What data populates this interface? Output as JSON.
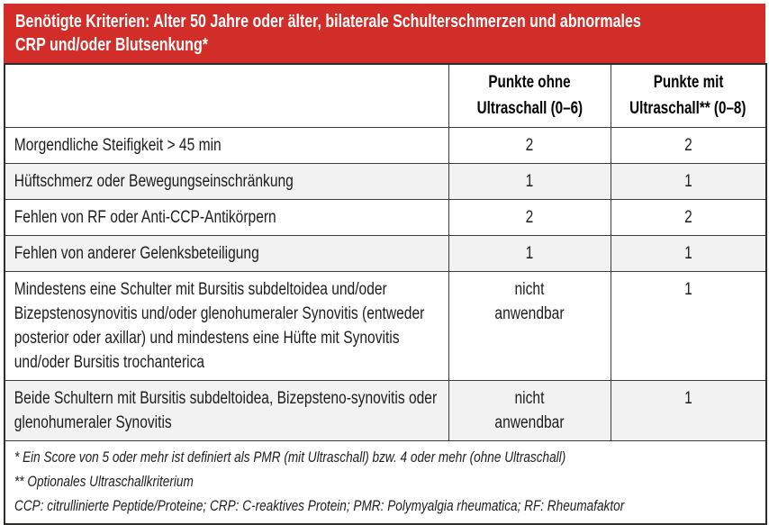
{
  "banner": {
    "line1": "Benötigte Kriterien: Alter 50 Jahre oder älter, bilaterale Schulterschmerzen und abnormales",
    "line2": "CRP und/oder Blutsenkung*"
  },
  "table": {
    "columns": {
      "without_line1": "Punkte ohne",
      "without_line2": "Ultraschall (0–6)",
      "with_line1": "Punkte mit",
      "with_line2": "Ultraschall** (0–8)"
    },
    "rows": [
      {
        "criterion": "Morgendliche Steifigkeit > 45 min",
        "points_without": "2",
        "points_with": "2"
      },
      {
        "criterion": "Hüftschmerz oder Bewegungseinschränkung",
        "points_without": "1",
        "points_with": "1"
      },
      {
        "criterion": "Fehlen von RF oder Anti-CCP-Antikörpern",
        "points_without": "2",
        "points_with": "2"
      },
      {
        "criterion": "Fehlen von anderer Gelenksbeteiligung",
        "points_without": "1",
        "points_with": "1"
      },
      {
        "criterion": "Mindestens eine Schulter mit Bursitis subdeltoidea und/oder Bizepstenosynovitis und/oder glenohumeraler Synovitis (entweder posterior oder axillar) und mindestens eine Hüfte mit Synovitis und/oder Bursitis trochanterica",
        "points_without": "nicht\nanwendbar",
        "points_with": "1"
      },
      {
        "criterion": "Beide Schultern mit Bursitis subdeltoidea, Bizepsteno-synovitis oder glenohumeraler Synovitis",
        "points_without": "nicht\nanwendbar",
        "points_with": "1"
      }
    ],
    "footnotes": [
      "* Ein Score von 5 oder mehr ist definiert als PMR (mit Ultraschall) bzw. 4 oder mehr (ohne Ultraschall)",
      "** Optionales Ultraschallkriterium",
      "CCP: citrullinierte Peptide/Proteine; CRP: C-reaktives Protein; PMR: Polymyalgia rheumatica; RF: Rheumafaktor"
    ]
  },
  "colors": {
    "banner_red": "#d22d28",
    "row_alt_gray": "#f2f2f2",
    "border_dark": "#3b3b3a"
  }
}
